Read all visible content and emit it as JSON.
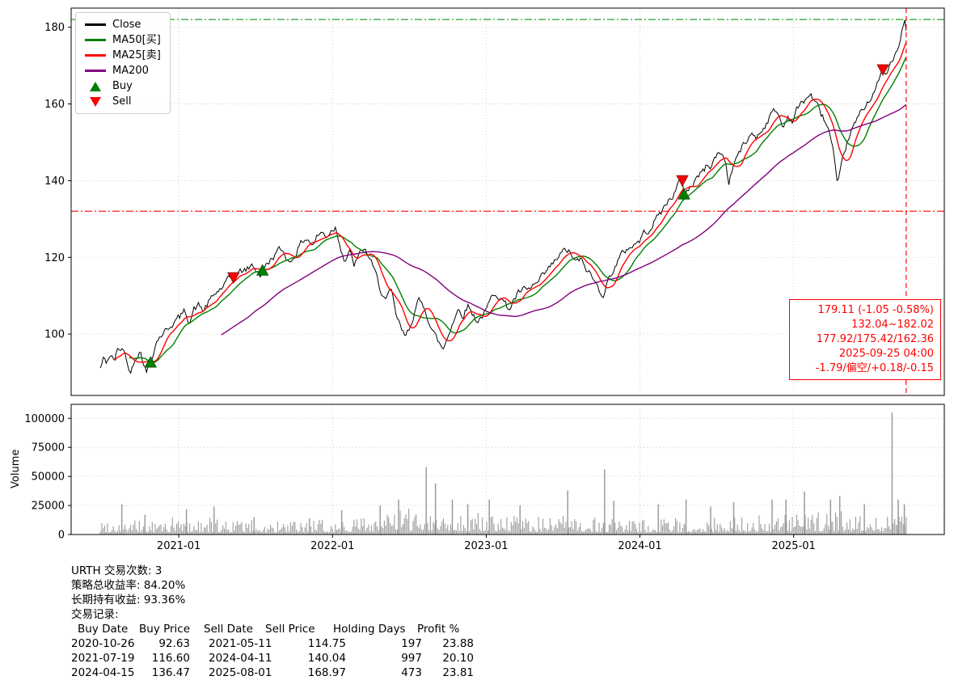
{
  "chart_data": {
    "type": "line",
    "symbol": "URTH",
    "has_volume_subplot": true,
    "x_domain": [
      2020.3,
      2025.98
    ],
    "x_ticks": [
      {
        "v": 2021,
        "label": "2021-01"
      },
      {
        "v": 2022,
        "label": "2022-01"
      },
      {
        "v": 2023,
        "label": "2023-01"
      },
      {
        "v": 2024,
        "label": "2024-01"
      },
      {
        "v": 2025,
        "label": "2025-01"
      }
    ],
    "price_axis": {
      "domain": [
        84,
        185
      ],
      "ticks": [
        100,
        120,
        140,
        160,
        180
      ]
    },
    "volume_axis": {
      "domain": [
        0,
        112000
      ],
      "ticks": [
        0,
        25000,
        50000,
        75000,
        100000
      ],
      "label": "Volume"
    },
    "colors": {
      "close": "#000000",
      "ma25": "#ff0000",
      "ma50": "#008000",
      "ma200": "#800080",
      "buy": "#008000",
      "sell": "#ff0000",
      "volume_bar": "#9b9b9b",
      "grid": "#c3c3c3",
      "high_line": "#2ca02c",
      "low_line": "#ff0000",
      "cursor_line": "#ff0000",
      "annotation": "#ff0000"
    },
    "legend": [
      {
        "label": "Close",
        "color": "#000000",
        "type": "line"
      },
      {
        "label": "MA50[买]",
        "color": "#008000",
        "type": "line"
      },
      {
        "label": "MA25[卖]",
        "color": "#ff0000",
        "type": "line"
      },
      {
        "label": "MA200",
        "color": "#800080",
        "type": "line"
      },
      {
        "label": "Buy",
        "color": "#008000",
        "type": "marker-up"
      },
      {
        "label": "Sell",
        "color": "#ff0000",
        "type": "marker-down"
      }
    ],
    "ma_windows": {
      "ma25": 25,
      "ma50": 50,
      "ma200": 200
    },
    "hlines": [
      {
        "value": 182.02,
        "color": "#2ca02c"
      },
      {
        "value": 132.04,
        "color": "#ff0000"
      }
    ],
    "vline": {
      "t": 2025.732,
      "color": "#ff0000",
      "date": "2025-09-25"
    },
    "buy_markers": [
      [
        2020.817,
        92.63
      ],
      [
        2021.545,
        116.6
      ],
      [
        2024.287,
        136.47
      ]
    ],
    "sell_markers": [
      [
        2021.356,
        114.75
      ],
      [
        2024.276,
        140.04
      ],
      [
        2025.581,
        168.97
      ]
    ],
    "annotation": {
      "color": "#ff0000",
      "lines": [
        "179.11 (-1.05 -0.58%)",
        "132.04~182.02",
        "177.92/175.42/162.36",
        "2025-09-25 04:00",
        "-1.79/偏空/+0.18/-0.15"
      ]
    },
    "close_series": [
      [
        2020.49,
        91.0
      ],
      [
        2020.51,
        93.5
      ],
      [
        2020.53,
        92.5
      ],
      [
        2020.55,
        94.5
      ],
      [
        2020.58,
        93.0
      ],
      [
        2020.6,
        95.5
      ],
      [
        2020.63,
        96.5
      ],
      [
        2020.66,
        94.0
      ],
      [
        2020.68,
        89.5
      ],
      [
        2020.7,
        92.0
      ],
      [
        2020.72,
        94.5
      ],
      [
        2020.75,
        95.5
      ],
      [
        2020.77,
        93.0
      ],
      [
        2020.79,
        90.0
      ],
      [
        2020.817,
        92.63
      ],
      [
        2020.84,
        96.5
      ],
      [
        2020.86,
        98.5
      ],
      [
        2020.89,
        100.0
      ],
      [
        2020.92,
        101.0
      ],
      [
        2020.95,
        102.5
      ],
      [
        2020.98,
        103.5
      ],
      [
        2021.01,
        104.5
      ],
      [
        2021.04,
        106.0
      ],
      [
        2021.07,
        103.5
      ],
      [
        2021.1,
        106.5
      ],
      [
        2021.13,
        107.5
      ],
      [
        2021.16,
        106.0
      ],
      [
        2021.19,
        108.0
      ],
      [
        2021.22,
        109.5
      ],
      [
        2021.25,
        111.0
      ],
      [
        2021.28,
        112.0
      ],
      [
        2021.31,
        113.5
      ],
      [
        2021.34,
        114.5
      ],
      [
        2021.356,
        114.75
      ],
      [
        2021.39,
        116.0
      ],
      [
        2021.42,
        116.5
      ],
      [
        2021.45,
        117.0
      ],
      [
        2021.48,
        118.0
      ],
      [
        2021.51,
        116.5
      ],
      [
        2021.53,
        115.5
      ],
      [
        2021.545,
        116.6
      ],
      [
        2021.57,
        118.0
      ],
      [
        2021.6,
        119.5
      ],
      [
        2021.63,
        121.0
      ],
      [
        2021.66,
        122.0
      ],
      [
        2021.69,
        121.0
      ],
      [
        2021.72,
        118.5
      ],
      [
        2021.75,
        120.5
      ],
      [
        2021.78,
        122.5
      ],
      [
        2021.81,
        124.5
      ],
      [
        2021.84,
        125.0
      ],
      [
        2021.87,
        123.0
      ],
      [
        2021.9,
        125.5
      ],
      [
        2021.93,
        126.5
      ],
      [
        2021.96,
        125.5
      ],
      [
        2021.99,
        127.0
      ],
      [
        2022.02,
        128.0
      ],
      [
        2022.05,
        123.5
      ],
      [
        2022.08,
        119.0
      ],
      [
        2022.11,
        121.5
      ],
      [
        2022.14,
        118.0
      ],
      [
        2022.17,
        120.0
      ],
      [
        2022.2,
        122.5
      ],
      [
        2022.24,
        120.0
      ],
      [
        2022.28,
        115.5
      ],
      [
        2022.32,
        111.0
      ],
      [
        2022.35,
        108.5
      ],
      [
        2022.38,
        111.5
      ],
      [
        2022.41,
        105.5
      ],
      [
        2022.44,
        102.0
      ],
      [
        2022.47,
        99.0
      ],
      [
        2022.5,
        101.5
      ],
      [
        2022.53,
        105.5
      ],
      [
        2022.56,
        108.5
      ],
      [
        2022.6,
        107.0
      ],
      [
        2022.64,
        102.0
      ],
      [
        2022.68,
        98.5
      ],
      [
        2022.72,
        96.0
      ],
      [
        2022.75,
        99.5
      ],
      [
        2022.78,
        103.0
      ],
      [
        2022.82,
        106.5
      ],
      [
        2022.85,
        105.0
      ],
      [
        2022.88,
        107.5
      ],
      [
        2022.91,
        105.5
      ],
      [
        2022.94,
        103.5
      ],
      [
        2022.97,
        104.5
      ],
      [
        2023.0,
        106.0
      ],
      [
        2023.03,
        109.0
      ],
      [
        2023.06,
        111.0
      ],
      [
        2023.09,
        110.0
      ],
      [
        2023.12,
        108.0
      ],
      [
        2023.15,
        106.5
      ],
      [
        2023.18,
        109.0
      ],
      [
        2023.21,
        110.5
      ],
      [
        2023.24,
        111.5
      ],
      [
        2023.27,
        111.0
      ],
      [
        2023.3,
        112.5
      ],
      [
        2023.33,
        113.0
      ],
      [
        2023.36,
        114.5
      ],
      [
        2023.4,
        116.5
      ],
      [
        2023.44,
        118.5
      ],
      [
        2023.48,
        120.5
      ],
      [
        2023.52,
        122.0
      ],
      [
        2023.55,
        121.0
      ],
      [
        2023.58,
        118.5
      ],
      [
        2023.61,
        119.5
      ],
      [
        2023.64,
        117.5
      ],
      [
        2023.67,
        116.0
      ],
      [
        2023.7,
        114.0
      ],
      [
        2023.73,
        112.0
      ],
      [
        2023.76,
        110.5
      ],
      [
        2023.79,
        113.5
      ],
      [
        2023.82,
        116.5
      ],
      [
        2023.85,
        118.5
      ],
      [
        2023.88,
        120.5
      ],
      [
        2023.91,
        122.0
      ],
      [
        2023.94,
        123.0
      ],
      [
        2023.97,
        123.5
      ],
      [
        2024.0,
        124.5
      ],
      [
        2024.03,
        126.5
      ],
      [
        2024.06,
        127.5
      ],
      [
        2024.09,
        129.0
      ],
      [
        2024.12,
        131.0
      ],
      [
        2024.15,
        132.5
      ],
      [
        2024.18,
        134.5
      ],
      [
        2024.21,
        136.0
      ],
      [
        2024.24,
        138.0
      ],
      [
        2024.26,
        140.0
      ],
      [
        2024.276,
        140.04
      ],
      [
        2024.287,
        136.47
      ],
      [
        2024.31,
        137.5
      ],
      [
        2024.34,
        139.0
      ],
      [
        2024.37,
        141.0
      ],
      [
        2024.4,
        142.0
      ],
      [
        2024.43,
        143.5
      ],
      [
        2024.46,
        144.0
      ],
      [
        2024.49,
        146.0
      ],
      [
        2024.52,
        147.5
      ],
      [
        2024.55,
        146.0
      ],
      [
        2024.58,
        139.5
      ],
      [
        2024.61,
        144.5
      ],
      [
        2024.64,
        147.0
      ],
      [
        2024.67,
        149.0
      ],
      [
        2024.7,
        150.5
      ],
      [
        2024.73,
        152.5
      ],
      [
        2024.76,
        151.5
      ],
      [
        2024.79,
        153.0
      ],
      [
        2024.82,
        155.0
      ],
      [
        2024.85,
        157.0
      ],
      [
        2024.88,
        158.5
      ],
      [
        2024.91,
        156.5
      ],
      [
        2024.93,
        153.5
      ],
      [
        2024.96,
        157.0
      ],
      [
        2024.99,
        155.5
      ],
      [
        2025.02,
        158.5
      ],
      [
        2025.05,
        160.0
      ],
      [
        2025.08,
        161.5
      ],
      [
        2025.11,
        162.5
      ],
      [
        2025.14,
        160.5
      ],
      [
        2025.17,
        158.0
      ],
      [
        2025.2,
        156.0
      ],
      [
        2025.23,
        153.0
      ],
      [
        2025.26,
        147.0
      ],
      [
        2025.285,
        137.5
      ],
      [
        2025.3,
        141.0
      ],
      [
        2025.33,
        147.5
      ],
      [
        2025.36,
        151.5
      ],
      [
        2025.39,
        154.0
      ],
      [
        2025.42,
        156.5
      ],
      [
        2025.45,
        158.5
      ],
      [
        2025.48,
        160.5
      ],
      [
        2025.51,
        162.5
      ],
      [
        2025.54,
        164.5
      ],
      [
        2025.57,
        167.5
      ],
      [
        2025.581,
        168.97
      ],
      [
        2025.6,
        167.0
      ],
      [
        2025.62,
        169.5
      ],
      [
        2025.65,
        171.5
      ],
      [
        2025.68,
        174.5
      ],
      [
        2025.7,
        177.5
      ],
      [
        2025.715,
        181.0
      ],
      [
        2025.725,
        182.0
      ],
      [
        2025.732,
        179.11
      ]
    ],
    "volume_envelope": [
      [
        2020.49,
        8000
      ],
      [
        2020.8,
        7000
      ],
      [
        2021.0,
        9000
      ],
      [
        2021.3,
        8000
      ],
      [
        2021.6,
        6500
      ],
      [
        2021.9,
        7000
      ],
      [
        2022.1,
        9000
      ],
      [
        2022.4,
        12000
      ],
      [
        2022.6,
        14000
      ],
      [
        2022.9,
        11000
      ],
      [
        2023.1,
        10000
      ],
      [
        2023.4,
        9500
      ],
      [
        2023.7,
        9000
      ],
      [
        2024.0,
        7500
      ],
      [
        2024.3,
        8500
      ],
      [
        2024.6,
        9000
      ],
      [
        2024.9,
        10000
      ],
      [
        2025.1,
        10500
      ],
      [
        2025.3,
        12000
      ],
      [
        2025.5,
        11000
      ],
      [
        2025.732,
        12000
      ]
    ],
    "volume_spikes": [
      [
        2020.63,
        26000
      ],
      [
        2020.78,
        17000
      ],
      [
        2021.05,
        22000
      ],
      [
        2021.23,
        24000
      ],
      [
        2021.49,
        15000
      ],
      [
        2021.85,
        14000
      ],
      [
        2022.06,
        21000
      ],
      [
        2022.31,
        25000
      ],
      [
        2022.43,
        30000
      ],
      [
        2022.61,
        58000
      ],
      [
        2022.67,
        44000
      ],
      [
        2022.78,
        30000
      ],
      [
        2022.88,
        26000
      ],
      [
        2023.02,
        30000
      ],
      [
        2023.22,
        25000
      ],
      [
        2023.53,
        38000
      ],
      [
        2023.77,
        56000
      ],
      [
        2023.83,
        29000
      ],
      [
        2024.12,
        26000
      ],
      [
        2024.3,
        30000
      ],
      [
        2024.46,
        24000
      ],
      [
        2024.61,
        28000
      ],
      [
        2024.86,
        30000
      ],
      [
        2024.95,
        30000
      ],
      [
        2025.07,
        37000
      ],
      [
        2025.24,
        30000
      ],
      [
        2025.3,
        33000
      ],
      [
        2025.46,
        26000
      ],
      [
        2025.64,
        105000
      ],
      [
        2025.68,
        30000
      ],
      [
        2025.72,
        26000
      ]
    ]
  },
  "summary": {
    "trade_count_line": "URTH 交易次数: 3",
    "strategy_return_line": "策略总收益率: 84.20%",
    "hold_return_line": "长期持有收益: 93.36%",
    "trades_title": "交易记录:",
    "table": {
      "headers": [
        "Buy Date",
        "Buy Price",
        "Sell Date",
        "Sell Price",
        "Holding Days",
        "Profit %"
      ],
      "rows": [
        [
          "2020-10-26",
          "92.63",
          "2021-05-11",
          "114.75",
          "197",
          "23.88"
        ],
        [
          "2021-07-19",
          "116.60",
          "2024-04-11",
          "140.04",
          "997",
          "20.10"
        ],
        [
          "2024-04-15",
          "136.47",
          "2025-08-01",
          "168.97",
          "473",
          "23.81"
        ]
      ]
    }
  }
}
